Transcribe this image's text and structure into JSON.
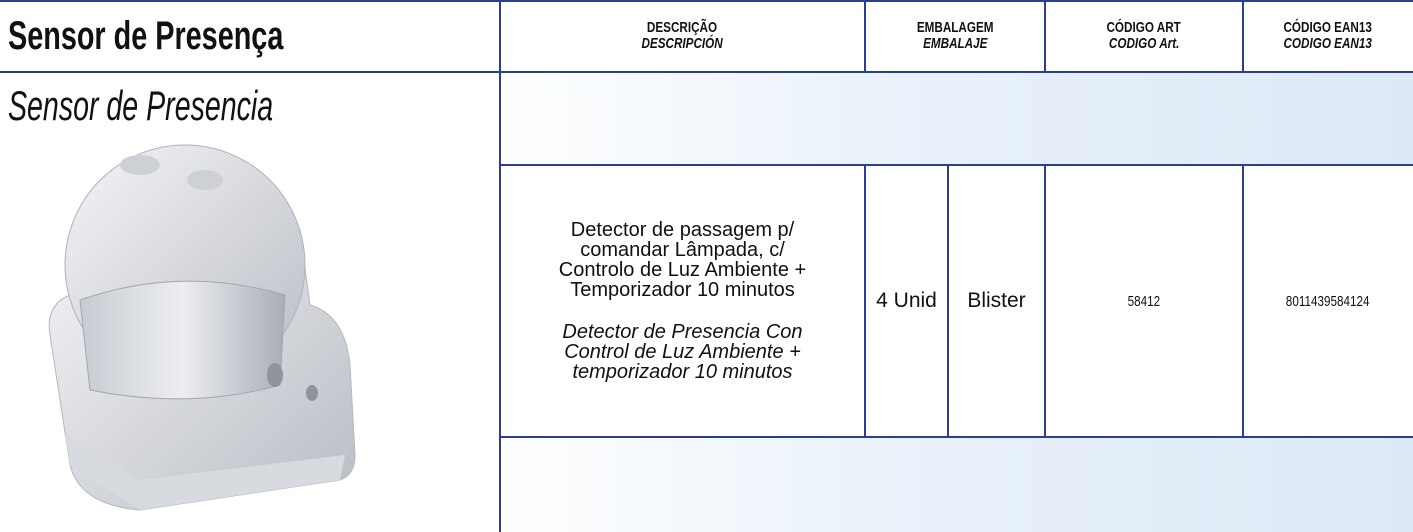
{
  "header": {
    "title": "Sensor de Presença",
    "subtitle": "Sensor de Presencia"
  },
  "table": {
    "columns": [
      {
        "pt": "DESCRIÇÃO",
        "es": "DESCRIPCIÓN"
      },
      {
        "pt": "EMBALAGEM",
        "es": "EMBALAJE"
      },
      {
        "pt": "CÓDIGO ART",
        "es": "CODIGO Art."
      },
      {
        "pt": "CÓDIGO EAN13",
        "es": "CODIGO EAN13"
      }
    ],
    "rows": [
      {
        "description_pt": "Detector de passagem p/ comandar Lâmpada, c/ Controlo de Luz Ambiente + Temporizador 10 minutos",
        "description_es": "Detector de Presencia Con Control de Luz Ambiente + temporizador 10 minutos",
        "quantity": "4 Unid",
        "packaging": "Blister",
        "code_art": "58412",
        "code_ean": "8011439584124"
      }
    ]
  }
}
